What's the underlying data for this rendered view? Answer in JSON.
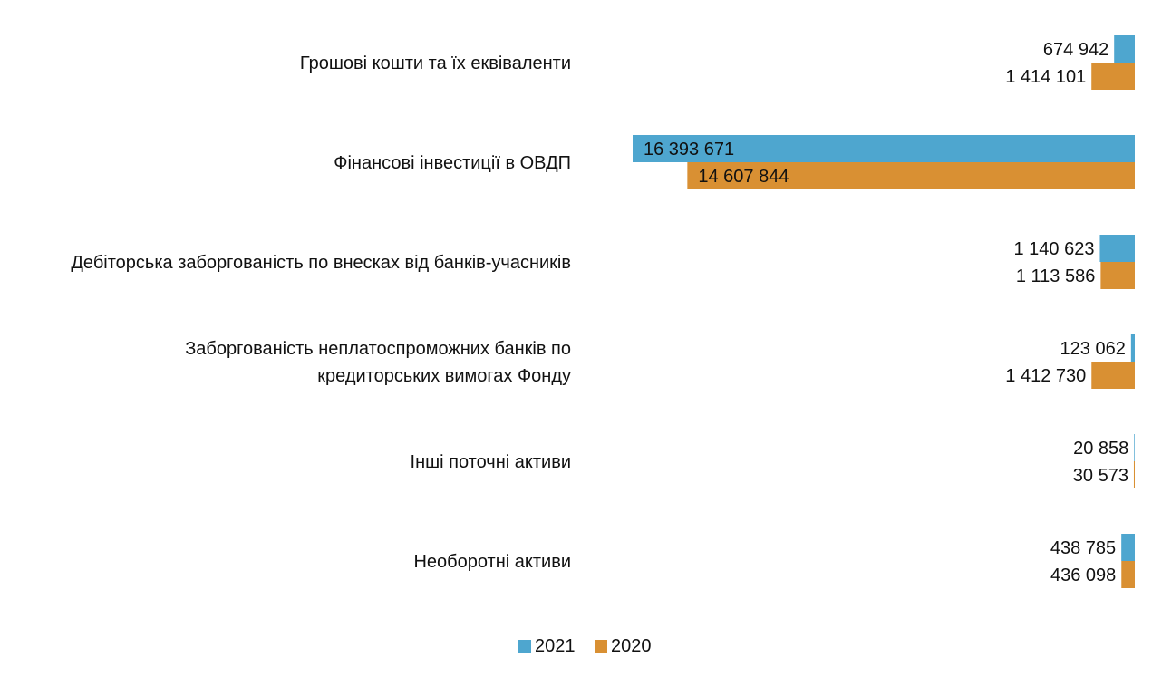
{
  "chart_data": {
    "type": "bar",
    "orientation": "horizontal",
    "x_direction": "right-to-left",
    "categories": [
      "Грошові кошти та їх еквіваленти",
      "Фінансові інвестиції в ОВДП",
      "Дебіторська заборгованість по внесках від банків-учасників",
      "Заборгованість неплатоспроможних банків по кредиторських вимогах Фонду",
      "Інші поточні активи",
      "Необоротні активи"
    ],
    "category_lines": [
      [
        "Грошові кошти та їх еквіваленти"
      ],
      [
        "Фінансові інвестиції в ОВДП"
      ],
      [
        "Дебіторська заборгованість по внесках від банків-учасників"
      ],
      [
        "Заборгованість неплатоспроможних банків по",
        "кредиторських вимогах Фонду"
      ],
      [
        "Інші поточні активи"
      ],
      [
        "Необоротні активи"
      ]
    ],
    "series": [
      {
        "name": "2021",
        "color": "#4ea6cf",
        "values": [
          674942,
          16393671,
          1140623,
          123062,
          20858,
          438785
        ],
        "value_labels": [
          "674 942",
          "16 393 671",
          "1 140 623",
          "123 062",
          "20 858",
          "438 785"
        ]
      },
      {
        "name": "2020",
        "color": "#d99033",
        "values": [
          1414101,
          14607844,
          1113586,
          1412730,
          30573,
          436098
        ],
        "value_labels": [
          "1 414 101",
          "14 607 844",
          "1 113 586",
          "1 412 730",
          "30 573",
          "436 098"
        ]
      }
    ],
    "xlim": [
      0,
      16393671
    ],
    "legend": "bottom-center",
    "grid": false
  }
}
